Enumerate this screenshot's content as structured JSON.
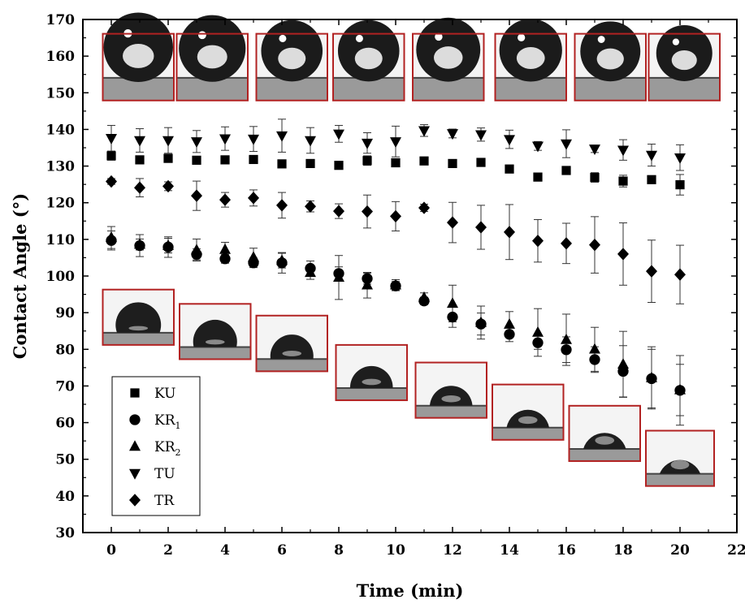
{
  "chart_data": {
    "type": "scatter",
    "xlabel": "Time (min)",
    "ylabel": "Contact Angle (°)",
    "xlim": [
      -1,
      22
    ],
    "ylim": [
      30,
      170
    ],
    "x_ticks": [
      0,
      2,
      4,
      6,
      8,
      10,
      12,
      14,
      16,
      18,
      20,
      22
    ],
    "y_ticks": [
      30,
      40,
      50,
      60,
      70,
      80,
      90,
      100,
      110,
      120,
      130,
      140,
      150,
      160,
      170
    ],
    "legend_placement": "bottom-left",
    "frame_color": "#b22222",
    "series": [
      {
        "name": "KU",
        "label_main": "KU",
        "label_sub": "",
        "marker": "square",
        "x": [
          0,
          1,
          2,
          3,
          4,
          5,
          6,
          7,
          8,
          9,
          10,
          11,
          12,
          13,
          14,
          15,
          16,
          17,
          18,
          19,
          20
        ],
        "y": [
          132.8,
          131.7,
          132.1,
          131.6,
          131.7,
          131.8,
          130.6,
          130.7,
          130.2,
          131.5,
          130.9,
          131.4,
          130.7,
          131.0,
          129.2,
          127.0,
          128.8,
          126.9,
          125.9,
          126.3,
          124.9
        ],
        "err": [
          1.2,
          0.4,
          1.0,
          0.6,
          0.6,
          0.6,
          0.5,
          0.5,
          0.4,
          1.3,
          0.8,
          0.5,
          0.5,
          0.6,
          0.5,
          0.6,
          0.8,
          1.3,
          1.6,
          0.3,
          2.8
        ]
      },
      {
        "name": "KR1",
        "label_main": "KR",
        "label_sub": "1",
        "marker": "circle",
        "x": [
          0,
          1,
          2,
          3,
          4,
          5,
          6,
          7,
          8,
          9,
          10,
          11,
          12,
          13,
          14,
          15,
          16,
          17,
          18,
          19,
          20
        ],
        "y": [
          109.7,
          108.3,
          107.9,
          105.9,
          104.7,
          103.6,
          103.6,
          102.1,
          100.7,
          99.3,
          97.3,
          93.2,
          88.8,
          86.9,
          84.1,
          81.8,
          79.9,
          77.2,
          74.0,
          72.0,
          68.8
        ],
        "err": [
          2.6,
          3.0,
          2.8,
          1.5,
          1.2,
          1.3,
          2.8,
          2.0,
          1.8,
          1.5,
          1.2,
          1.0,
          2.8,
          3.0,
          2.0,
          1.8,
          3.5,
          3.5,
          7.0,
          8.0,
          9.5
        ]
      },
      {
        "name": "KR2",
        "label_main": "KR",
        "label_sub": "2",
        "marker": "triangle-up",
        "x": [
          0,
          1,
          2,
          3,
          4,
          5,
          6,
          7,
          8,
          9,
          10,
          11,
          12,
          13,
          14,
          15,
          16,
          17,
          18,
          19,
          20
        ],
        "y": [
          110.5,
          108.6,
          108.3,
          107.1,
          107.2,
          105.1,
          104.2,
          100.9,
          99.6,
          97.5,
          97.5,
          94.1,
          92.5,
          87.3,
          86.8,
          84.6,
          82.6,
          80.0,
          75.9,
          72.2,
          68.9
        ],
        "err": [
          3.0,
          1.5,
          2.0,
          3.0,
          2.0,
          2.5,
          2.0,
          1.8,
          6.0,
          3.5,
          1.5,
          1.3,
          5.0,
          4.5,
          3.5,
          6.5,
          7.0,
          6.0,
          9.0,
          8.5,
          7.0
        ]
      },
      {
        "name": "TU",
        "label_main": "TU",
        "label_sub": "",
        "marker": "triangle-down",
        "x": [
          0,
          1,
          2,
          3,
          4,
          5,
          6,
          7,
          8,
          9,
          10,
          11,
          12,
          13,
          14,
          15,
          16,
          17,
          18,
          19,
          20
        ],
        "y": [
          137.6,
          137.0,
          137.0,
          136.7,
          137.5,
          137.4,
          138.3,
          137.0,
          138.8,
          136.3,
          136.7,
          139.7,
          138.9,
          138.6,
          137.3,
          135.5,
          136.1,
          134.7,
          134.4,
          133.0,
          132.3
        ],
        "err": [
          3.5,
          3.2,
          3.5,
          3.0,
          3.2,
          3.4,
          4.5,
          3.5,
          2.3,
          2.8,
          4.2,
          1.6,
          1.2,
          1.8,
          2.5,
          1.2,
          3.8,
          1.0,
          2.8,
          3.0,
          3.5
        ]
      },
      {
        "name": "TR",
        "label_main": "TR",
        "label_sub": "",
        "marker": "diamond",
        "x": [
          0,
          1,
          2,
          3,
          4,
          5,
          6,
          7,
          8,
          9,
          10,
          11,
          12,
          13,
          14,
          15,
          16,
          17,
          18,
          19,
          20
        ],
        "y": [
          125.8,
          124.1,
          124.5,
          121.9,
          120.8,
          121.3,
          119.3,
          119.0,
          117.7,
          117.6,
          116.3,
          118.6,
          114.6,
          113.3,
          112.0,
          109.6,
          108.9,
          108.5,
          106.0,
          101.3,
          100.4
        ],
        "err": [
          0.8,
          2.5,
          1.2,
          4.0,
          2.0,
          2.2,
          3.5,
          1.5,
          2.0,
          4.5,
          4.0,
          1.0,
          5.5,
          6.0,
          7.5,
          5.8,
          5.5,
          7.7,
          8.5,
          8.5,
          8.0
        ]
      }
    ],
    "insets_top": [
      {
        "x_start": -0.3,
        "x_end": 2.2,
        "y_top": 166.1,
        "y_bottom": 147.9,
        "drop_size": 0.52
      },
      {
        "x_start": 2.3,
        "x_end": 4.8,
        "y_top": 166.1,
        "y_bottom": 147.9,
        "drop_size": 0.5
      },
      {
        "x_start": 5.1,
        "x_end": 7.6,
        "y_top": 166.1,
        "y_bottom": 147.9,
        "drop_size": 0.46
      },
      {
        "x_start": 7.8,
        "x_end": 10.3,
        "y_top": 166.1,
        "y_bottom": 147.9,
        "drop_size": 0.46
      },
      {
        "x_start": 10.6,
        "x_end": 13.1,
        "y_top": 166.1,
        "y_bottom": 147.9,
        "drop_size": 0.48
      },
      {
        "x_start": 13.5,
        "x_end": 16.0,
        "y_top": 166.1,
        "y_bottom": 147.9,
        "drop_size": 0.47
      },
      {
        "x_start": 16.3,
        "x_end": 18.8,
        "y_top": 166.1,
        "y_bottom": 147.9,
        "drop_size": 0.45
      },
      {
        "x_start": 18.9,
        "x_end": 21.4,
        "y_top": 166.1,
        "y_bottom": 147.9,
        "drop_size": 0.42
      }
    ],
    "insets_bottom": [
      {
        "x_start": -0.3,
        "x_end": 2.2,
        "y_top": 96.3,
        "y_bottom": 81.2,
        "contact_angle": 110
      },
      {
        "x_start": 2.4,
        "x_end": 4.9,
        "y_top": 92.4,
        "y_bottom": 77.3,
        "contact_angle": 104
      },
      {
        "x_start": 5.1,
        "x_end": 7.6,
        "y_top": 89.2,
        "y_bottom": 74.0,
        "contact_angle": 98
      },
      {
        "x_start": 7.9,
        "x_end": 10.4,
        "y_top": 81.2,
        "y_bottom": 66.1,
        "contact_angle": 92
      },
      {
        "x_start": 10.7,
        "x_end": 13.2,
        "y_top": 76.4,
        "y_bottom": 61.3,
        "contact_angle": 86
      },
      {
        "x_start": 13.4,
        "x_end": 15.9,
        "y_top": 70.4,
        "y_bottom": 55.3,
        "contact_angle": 80
      },
      {
        "x_start": 16.1,
        "x_end": 18.6,
        "y_top": 64.6,
        "y_bottom": 49.5,
        "contact_angle": 74
      },
      {
        "x_start": 18.8,
        "x_end": 21.2,
        "y_top": 57.8,
        "y_bottom": 42.7,
        "contact_angle": 68
      }
    ]
  }
}
